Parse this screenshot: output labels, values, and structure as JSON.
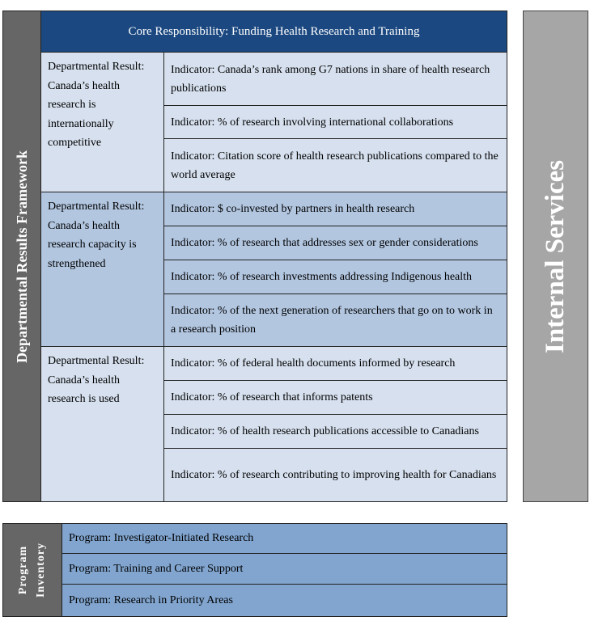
{
  "framework_label": "Departmental Results Framework",
  "core_responsibility": "Core Responsibility:  Funding Health Research and Training",
  "results": [
    {
      "label": "Departmental Result: Canada’s health research is internationally competitive",
      "indicators": [
        "Indicator: Canada’s rank among G7 nations in share of health research publications",
        "Indicator: % of research involving international collaborations",
        "Indicator: Citation score of health research publications compared to the world average"
      ]
    },
    {
      "label": "Departmental Result: Canada’s health research capacity is strengthened",
      "indicators": [
        "Indicator: $ co-invested by partners in health research",
        "Indicator: % of research that addresses sex or gender considerations",
        "Indicator: % of research investments addressing Indigenous health",
        "Indicator: % of the next generation of researchers that go on to work in a research position"
      ]
    },
    {
      "label": "Departmental Result: Canada’s health research is used",
      "indicators": [
        "Indicator: % of federal health documents informed by research",
        "Indicator: % of research that informs patents",
        "Indicator: % of health research publications accessible to Canadians",
        "Indicator: % of research contributing to improving health for Canadians"
      ]
    }
  ],
  "internal_services": "Internal Services",
  "program_inventory": {
    "label_line1": "Program",
    "label_line2": "Inventory",
    "programs": [
      "Program:  Investigator-Initiated Research",
      "Program:  Training and Career Support",
      "Program:  Research in Priority Areas"
    ]
  }
}
